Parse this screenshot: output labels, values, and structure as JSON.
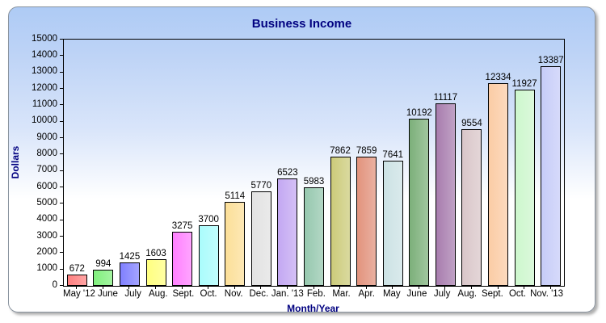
{
  "chart_data": {
    "type": "bar",
    "title": "Business Income",
    "xlabel": "Month/Year",
    "ylabel": "Dollars",
    "categories": [
      "May '12",
      "June",
      "July",
      "Aug.",
      "Sept.",
      "Oct.",
      "Nov.",
      "Dec.",
      "Jan. '13",
      "Feb.",
      "Mar.",
      "Apr.",
      "May",
      "June",
      "July",
      "Aug.",
      "Sept.",
      "Oct.",
      "Nov. '13"
    ],
    "values": [
      672,
      994,
      1425,
      1603,
      3275,
      3700,
      5114,
      5770,
      6523,
      5983,
      7862,
      7859,
      7641,
      10192,
      11117,
      9554,
      12334,
      11927,
      13387
    ],
    "value_labels": [
      "672",
      "994",
      "1425",
      "1603",
      "3275",
      "3700",
      "5114",
      "5770",
      "6523",
      "5983",
      "7862",
      "7859",
      "7641",
      "10192",
      "11117",
      "9554",
      "12334",
      "11927",
      "13387"
    ],
    "bar_colors": [
      "#FF8080",
      "#80F07D",
      "#8080FF",
      "#FFFF80",
      "#FF80FF",
      "#AAFCFC",
      "#FCDF98",
      "#E2E2E2",
      "#C3A8F2",
      "#96C8AE",
      "#CCCB7A",
      "#E2937D",
      "#CCE2E4",
      "#7CB07A",
      "#A87DAE",
      "#D9C6C9",
      "#FBCCA5",
      "#CDF7CD",
      "#C6CCF8"
    ],
    "ylim": [
      0,
      15000
    ],
    "ytick_step": 1000,
    "yticks": [
      0,
      1000,
      2000,
      3000,
      4000,
      5000,
      6000,
      7000,
      8000,
      9000,
      10000,
      11000,
      12000,
      13000,
      14000,
      15000
    ],
    "grid": false,
    "legend": false
  },
  "colors": {
    "title_text": "#000080",
    "axis_text": "#000000",
    "bar_border": "#000000",
    "panel_border": "#8A949F",
    "panel_gradient_top": "#AECBF5",
    "panel_gradient_bottom": "#FFFFFF"
  }
}
